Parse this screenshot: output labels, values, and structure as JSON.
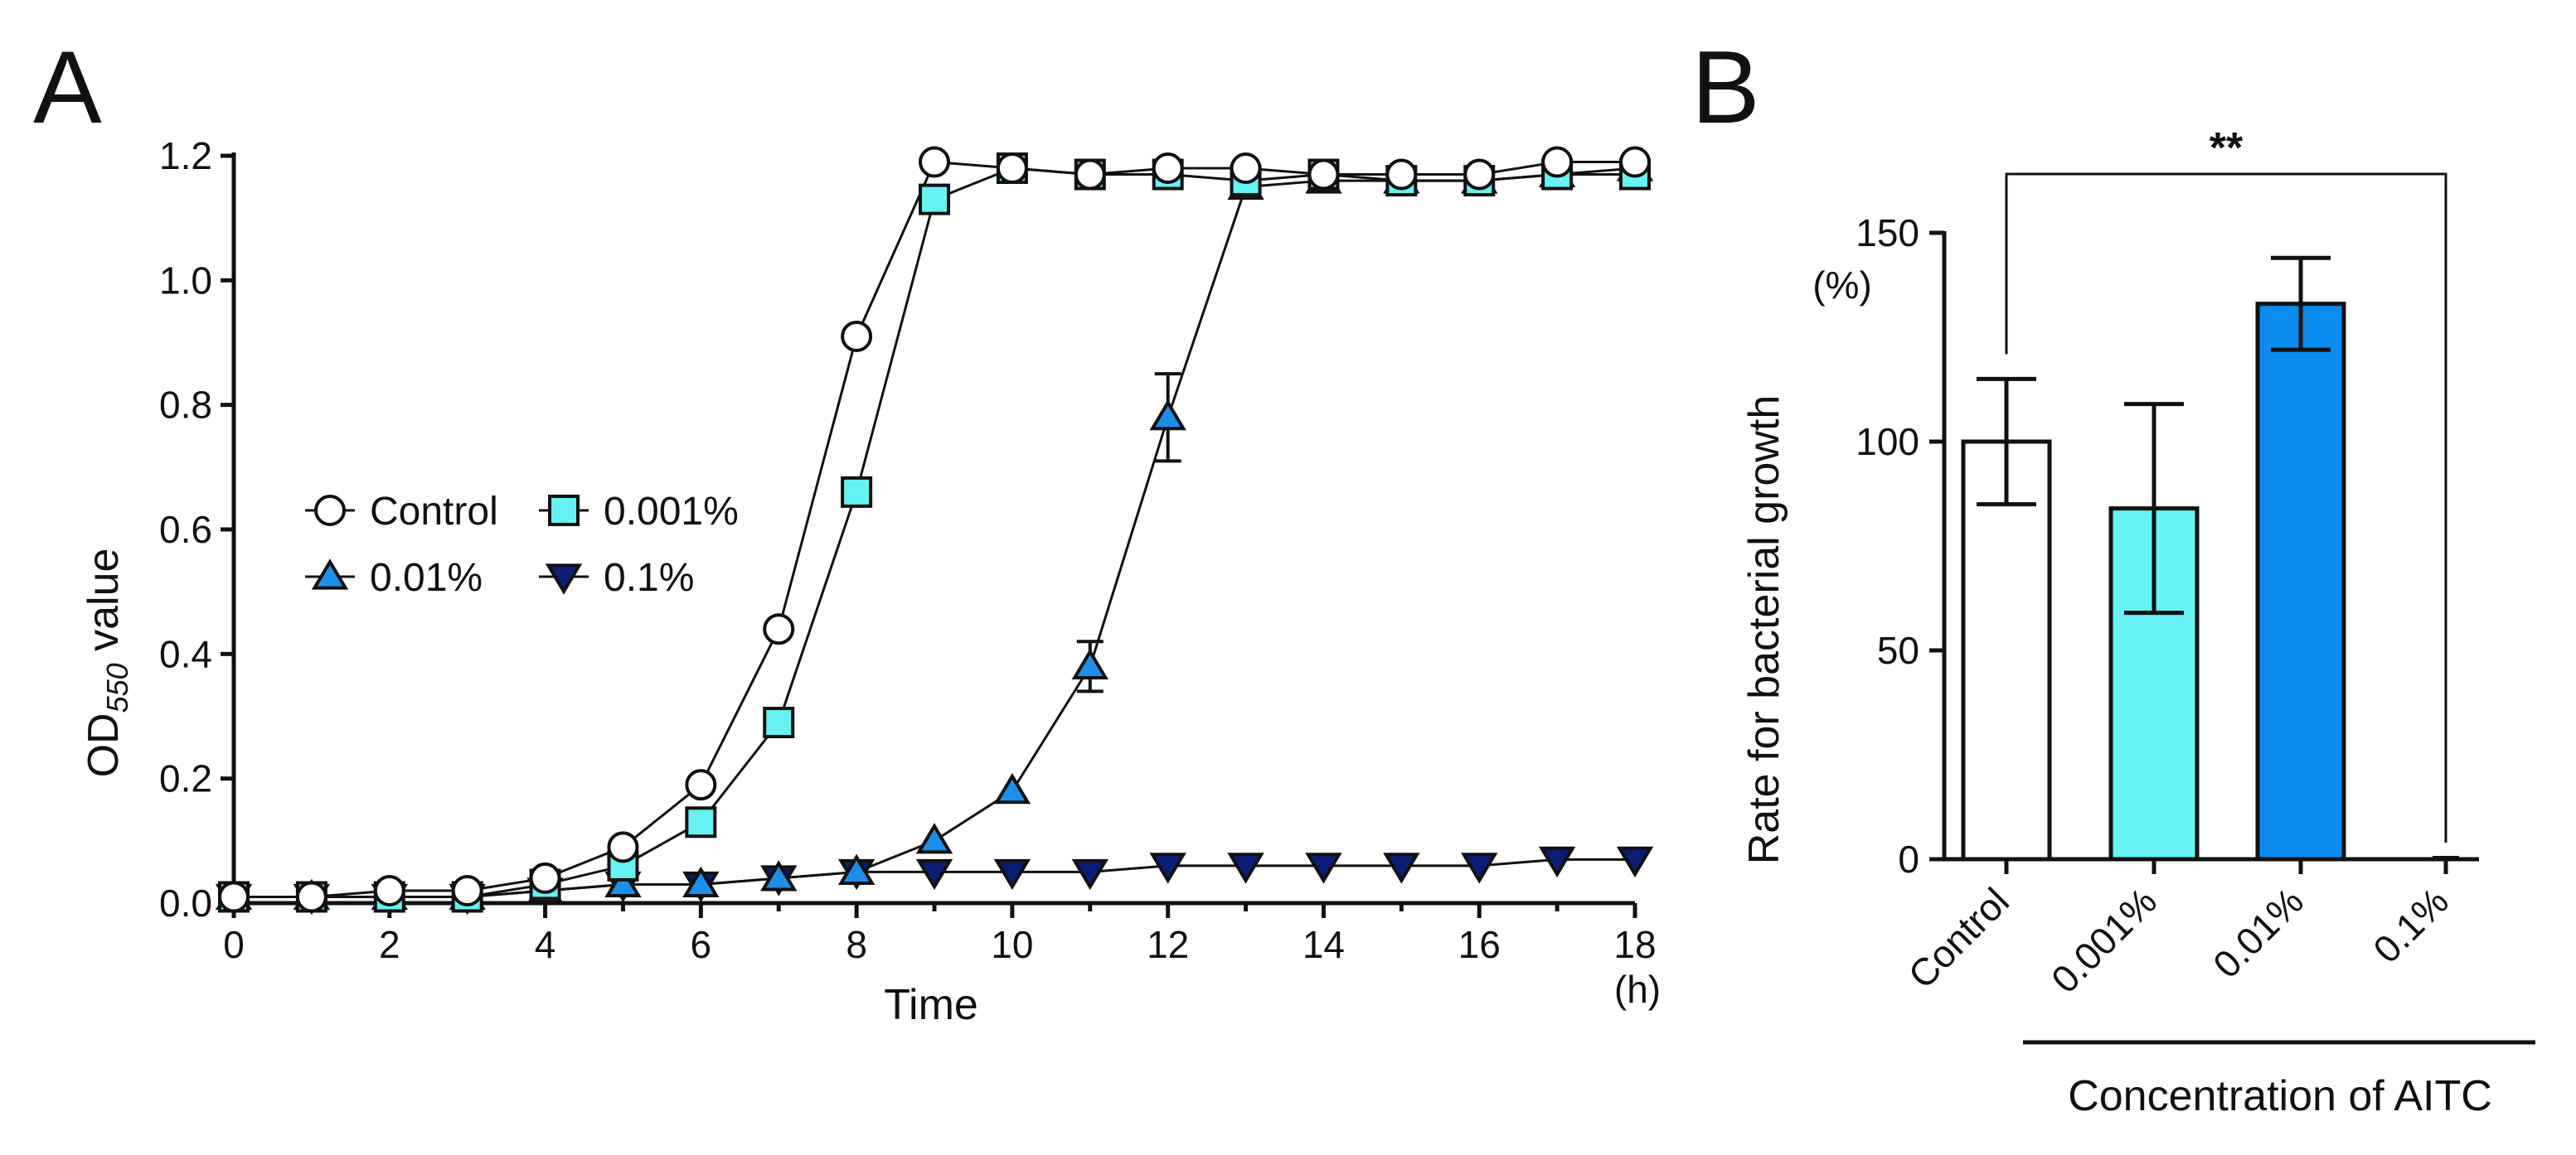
{
  "panel_letters": {
    "a": "A",
    "b": "B"
  },
  "colors": {
    "control": "#ffffff",
    "c0001": "#66f2f2",
    "c001": "#1e8fe8",
    "c01": "#0a1e78",
    "bar_0001": "#66f2f2",
    "bar_001": "#0a8cf0",
    "stroke": "#111111"
  },
  "chart_data": [
    {
      "type": "line",
      "panel": "A",
      "title": "",
      "xlabel": "Time",
      "xunit": "(h)",
      "ylabel_main": "OD",
      "ylabel_sub": "550",
      "ylabel_rest": " value",
      "xlim": [
        0,
        18
      ],
      "ylim": [
        0,
        1.2
      ],
      "xticks": [
        0,
        2,
        4,
        6,
        8,
        10,
        12,
        14,
        16,
        18
      ],
      "xtick_labels": [
        "0",
        "2",
        "4",
        "6",
        "8",
        "10",
        "12",
        "14",
        "16",
        "18"
      ],
      "yticks": [
        0,
        0.2,
        0.4,
        0.6,
        0.8,
        1.0,
        1.2
      ],
      "ytick_labels": [
        "0.0",
        "0.2",
        "0.4",
        "0.6",
        "0.8",
        "1.0",
        "1.2"
      ],
      "x": [
        0,
        1,
        2,
        3,
        4,
        5,
        6,
        7,
        8,
        9,
        10,
        11,
        12,
        13,
        14,
        15,
        16,
        17,
        18
      ],
      "legend_placement": "middle-left",
      "series": [
        {
          "name": "Control",
          "marker": "circle",
          "color_key": "control",
          "values": [
            0.01,
            0.01,
            0.02,
            0.02,
            0.04,
            0.09,
            0.19,
            0.44,
            0.91,
            1.19,
            1.18,
            1.17,
            1.18,
            1.18,
            1.17,
            1.17,
            1.17,
            1.19,
            1.19
          ],
          "errors": [
            0,
            0,
            0,
            0,
            0,
            0,
            0,
            0,
            0,
            0,
            0,
            0,
            0,
            0,
            0,
            0,
            0,
            0,
            0
          ]
        },
        {
          "name": "0.001%",
          "marker": "square",
          "color_key": "c0001",
          "values": [
            0.01,
            0.01,
            0.01,
            0.01,
            0.03,
            0.06,
            0.13,
            0.29,
            0.66,
            1.13,
            1.18,
            1.17,
            1.17,
            1.16,
            1.17,
            1.16,
            1.16,
            1.17,
            1.17
          ],
          "errors": [
            0,
            0,
            0,
            0,
            0,
            0,
            0,
            0,
            0,
            0,
            0,
            0,
            0,
            0,
            0,
            0,
            0,
            0,
            0
          ]
        },
        {
          "name": "0.01%",
          "marker": "triangle-up",
          "color_key": "c001",
          "values": [
            0.01,
            0.01,
            0.01,
            0.01,
            0.02,
            0.03,
            0.03,
            0.04,
            0.05,
            0.1,
            0.18,
            0.38,
            0.78,
            1.15,
            1.16,
            1.16,
            1.16,
            1.17,
            1.18
          ],
          "errors": [
            0,
            0,
            0,
            0,
            0,
            0,
            0,
            0,
            0,
            0,
            0,
            0.04,
            0.07,
            0,
            0,
            0,
            0,
            0,
            0
          ]
        },
        {
          "name": "0.1%",
          "marker": "triangle-down",
          "color_key": "c01",
          "values": [
            0.01,
            0.01,
            0.01,
            0.01,
            0.02,
            0.03,
            0.03,
            0.04,
            0.05,
            0.05,
            0.05,
            0.05,
            0.06,
            0.06,
            0.06,
            0.06,
            0.06,
            0.07,
            0.07
          ],
          "errors": [
            0,
            0,
            0,
            0,
            0,
            0,
            0,
            0,
            0,
            0,
            0,
            0,
            0,
            0,
            0,
            0,
            0,
            0,
            0
          ]
        }
      ]
    },
    {
      "type": "bar",
      "panel": "B",
      "title": "",
      "xlabel": "Concentration of AITC",
      "ylabel": "Rate for bacterial growth",
      "ylabel_unit": "(%)",
      "ylim": [
        0,
        150
      ],
      "yticks": [
        0,
        50,
        100,
        150
      ],
      "ytick_labels": [
        "0",
        "50",
        "100",
        "150"
      ],
      "categories": [
        "Control",
        "0.001%",
        "0.01%",
        "0.1%"
      ],
      "values": [
        100,
        84,
        133,
        0
      ],
      "errors": [
        15,
        25,
        11,
        0
      ],
      "bar_color_keys": [
        "control",
        "bar_0001",
        "bar_001",
        "control"
      ],
      "significance": {
        "label": "**",
        "from": "Control",
        "to": "0.1%"
      }
    }
  ]
}
